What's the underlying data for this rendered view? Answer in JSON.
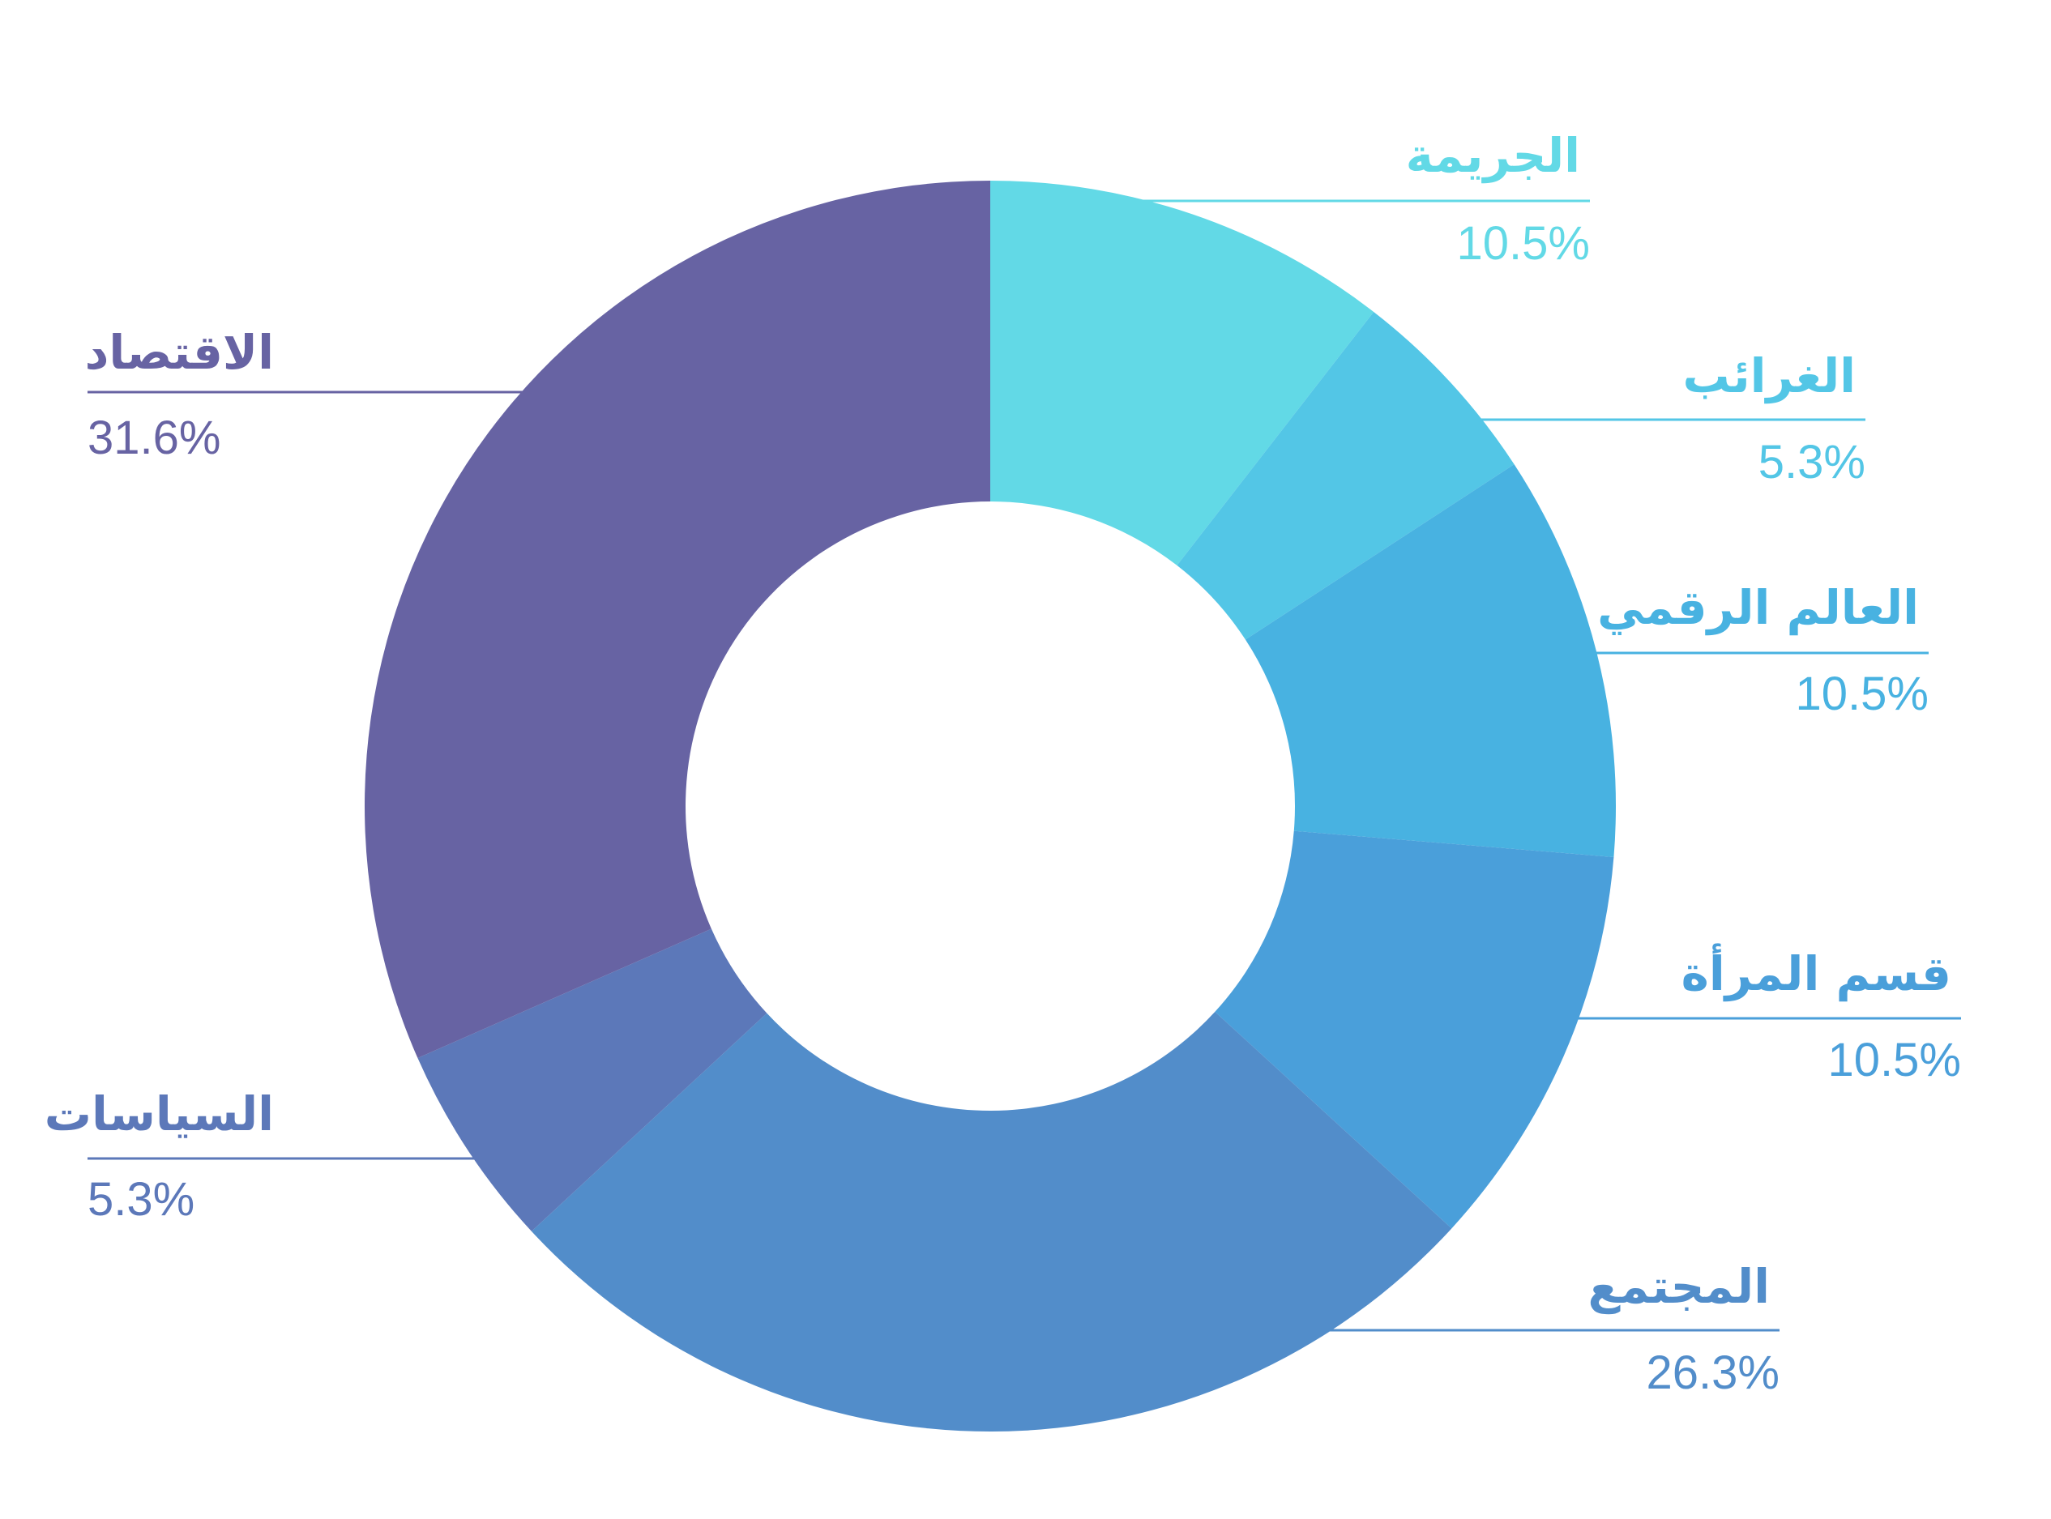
{
  "chart_data": {
    "type": "pie",
    "donut": true,
    "title": "",
    "slices": [
      {
        "label": "الجريمة",
        "value": 10.5,
        "value_label": "10.5%",
        "color": "#62d9e6"
      },
      {
        "label": "الغرائب",
        "value": 5.3,
        "value_label": "5.3%",
        "color": "#53c6e6"
      },
      {
        "label": "العالم الرقمي",
        "value": 10.5,
        "value_label": "10.5%",
        "color": "#48b2e1"
      },
      {
        "label": "قسم المرأة",
        "value": 10.5,
        "value_label": "10.5%",
        "color": "#4a9fda"
      },
      {
        "label": "المجتمع",
        "value": 26.3,
        "value_label": "26.3%",
        "color": "#528dca"
      },
      {
        "label": "السياسات",
        "value": 5.3,
        "value_label": "5.3%",
        "color": "#5c78b9"
      },
      {
        "label": "الاقتصاد",
        "value": 31.6,
        "value_label": "31.6%",
        "color": "#6763a3"
      }
    ],
    "legend": "callouts",
    "grid": false
  }
}
